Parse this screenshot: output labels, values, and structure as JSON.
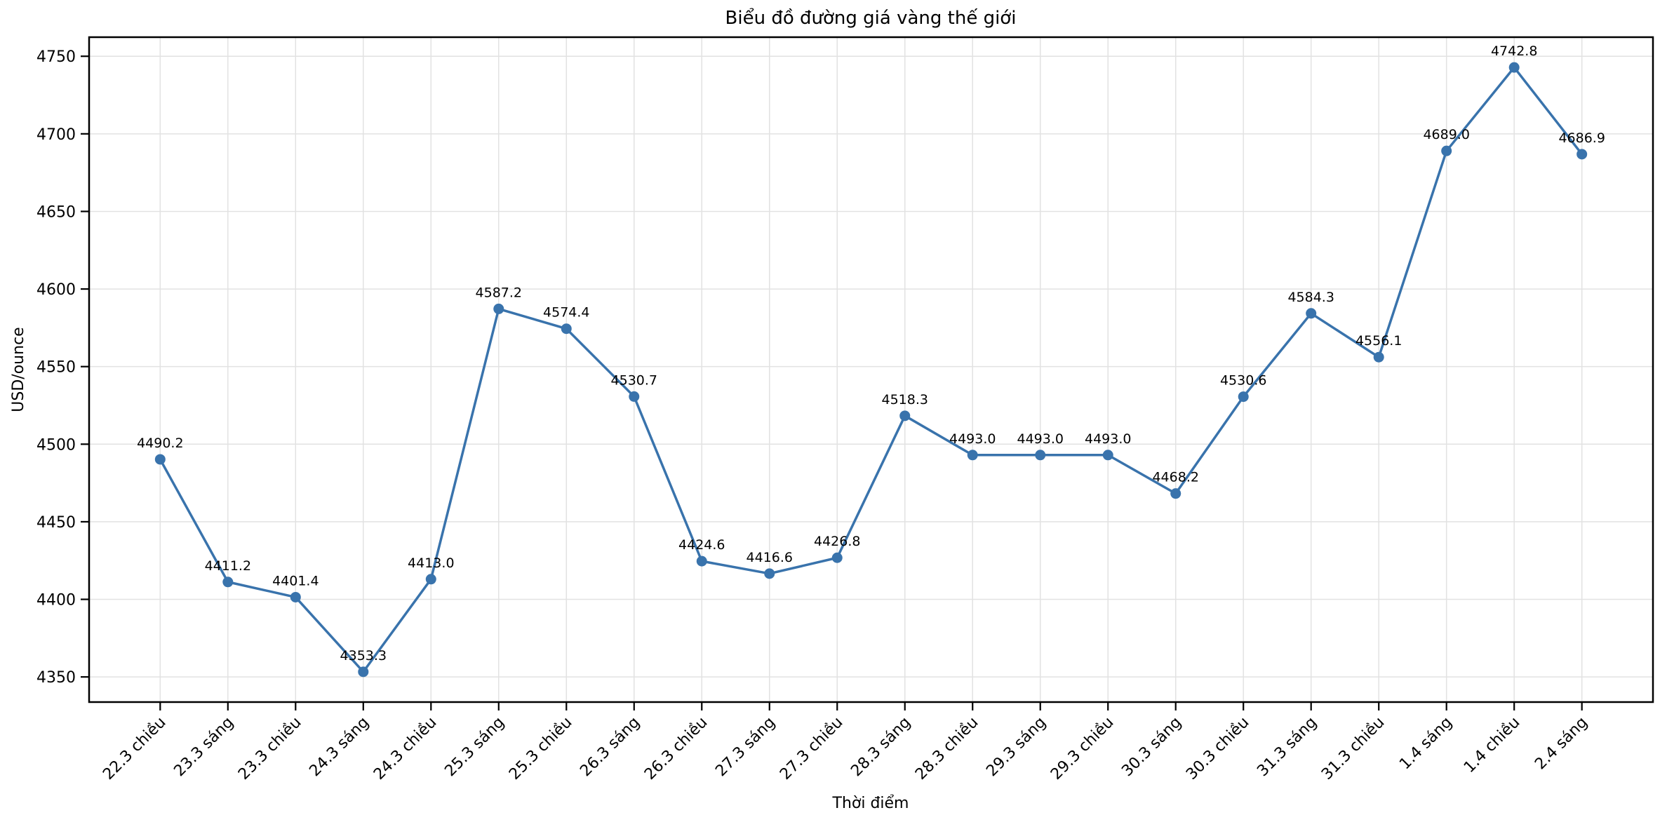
{
  "chart_data": {
    "type": "line",
    "title": "Biểu đồ đường giá vàng thế giới",
    "xlabel": "Thời điểm",
    "ylabel": "USD/ounce",
    "categories": [
      "22.3 chiều",
      "23.3 sáng",
      "23.3 chiều",
      "24.3 sáng",
      "24.3 chiều",
      "25.3 sáng",
      "25.3 chiều",
      "26.3 sáng",
      "26.3 chiều",
      "27.3 sáng",
      "27.3 chiều",
      "28.3 sáng",
      "28.3 chiều",
      "29.3 sáng",
      "29.3 chiều",
      "30.3 sáng",
      "30.3 chiều",
      "31.3 sáng",
      "31.3 chiều",
      "1.4 sáng",
      "1.4 chiều",
      "2.4 sáng"
    ],
    "values": [
      4490.2,
      4411.2,
      4401.4,
      4353.3,
      4413.0,
      4587.2,
      4574.4,
      4530.7,
      4424.6,
      4416.6,
      4426.8,
      4518.3,
      4493.0,
      4493.0,
      4493.0,
      4468.2,
      4530.6,
      4584.3,
      4556.1,
      4689.0,
      4742.8,
      4686.9
    ],
    "point_label_decimals": 1,
    "yticks": [
      4350,
      4400,
      4450,
      4500,
      4550,
      4600,
      4650,
      4700,
      4750
    ],
    "ylim": [
      4333.8,
      4762.3
    ],
    "xlim": [
      -1.05,
      22.05
    ],
    "grid": true,
    "legend": "none",
    "line_color": "#3973ac",
    "grid_color": "#e2e2e2",
    "spine_color": "#000000",
    "text_color": "#000000"
  }
}
